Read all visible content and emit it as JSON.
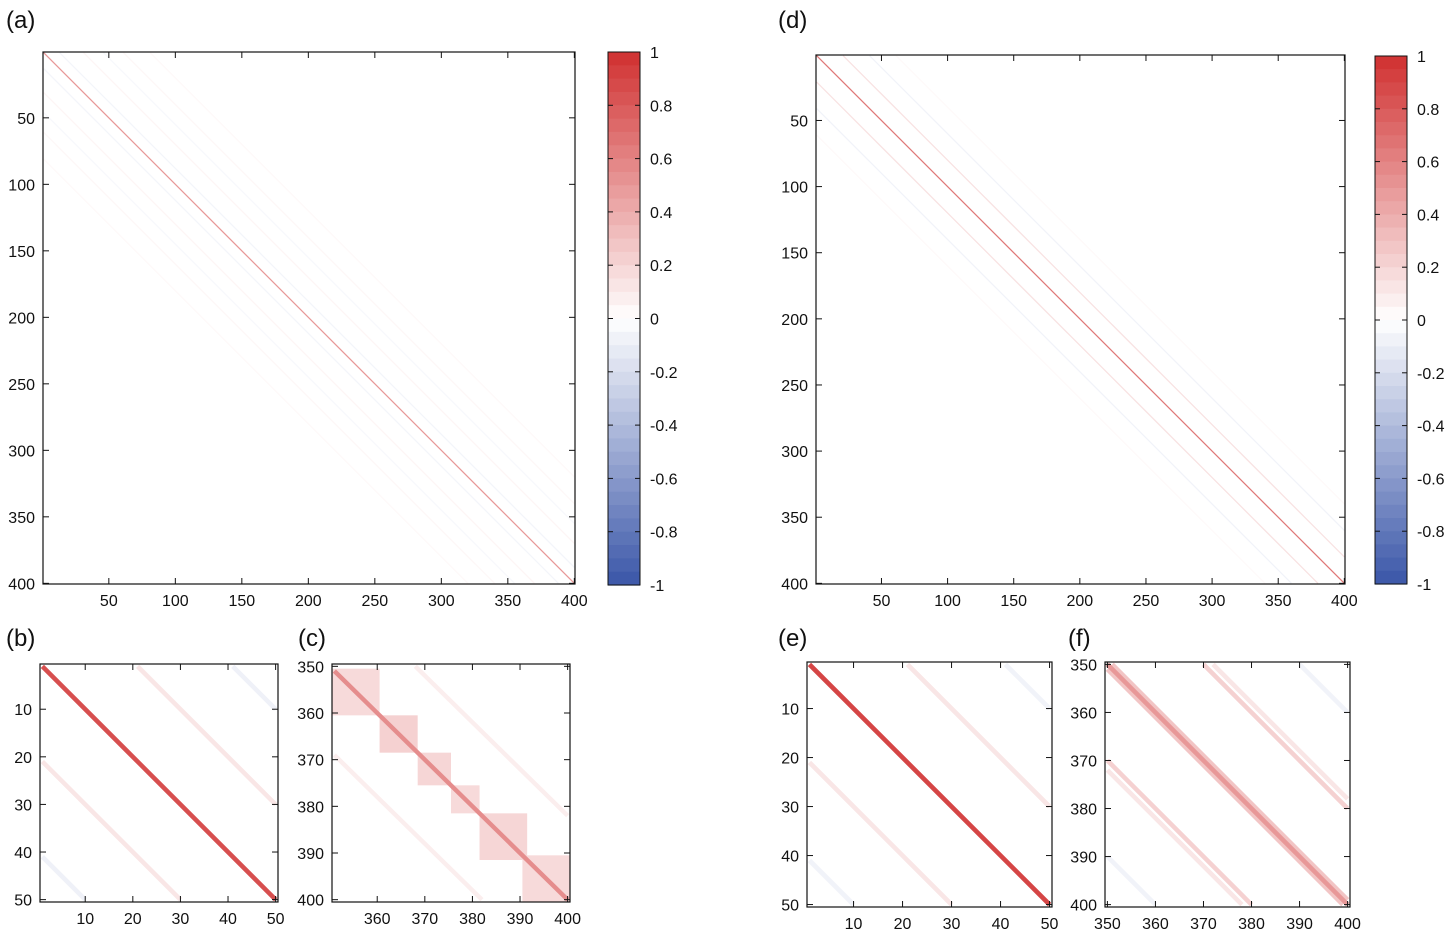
{
  "chart_data": [
    {
      "id": "a",
      "panel_label": "(a)",
      "type": "heatmap",
      "x_ticks": [
        50,
        100,
        150,
        200,
        250,
        300,
        350,
        400
      ],
      "y_ticks": [
        50,
        100,
        150,
        200,
        250,
        300,
        350,
        400
      ],
      "xlim": [
        1,
        400
      ],
      "ylim": [
        1,
        400
      ],
      "y_inverted": true,
      "diagonal_value": 0.5,
      "bands": [
        {
          "offset": 12,
          "value": -0.06
        },
        {
          "offset": -12,
          "value": -0.06
        },
        {
          "offset": 30,
          "value": 0.05
        },
        {
          "offset": -30,
          "value": 0.05
        },
        {
          "offset": 45,
          "value": -0.04
        },
        {
          "offset": -45,
          "value": -0.04
        },
        {
          "offset": 60,
          "value": 0.04
        },
        {
          "offset": -60,
          "value": 0.04
        },
        {
          "offset": 80,
          "value": 0.03
        },
        {
          "offset": -80,
          "value": 0.03
        }
      ]
    },
    {
      "id": "b",
      "panel_label": "(b)",
      "type": "heatmap",
      "x_ticks": [
        10,
        20,
        30,
        40,
        50
      ],
      "y_ticks": [
        10,
        20,
        30,
        40,
        50
      ],
      "xlim": [
        1,
        50
      ],
      "ylim": [
        1,
        50
      ],
      "y_inverted": true,
      "diagonal_value": 0.85,
      "bands": [
        {
          "offset": 20,
          "value": 0.12
        },
        {
          "offset": -20,
          "value": 0.12
        },
        {
          "offset": 40,
          "value": -0.08
        },
        {
          "offset": -40,
          "value": -0.08
        }
      ]
    },
    {
      "id": "c",
      "panel_label": "(c)",
      "type": "heatmap",
      "x_ticks": [
        360,
        370,
        380,
        390,
        400
      ],
      "y_ticks": [
        350,
        360,
        370,
        380,
        390,
        400
      ],
      "xlim": [
        351,
        400
      ],
      "ylim": [
        350,
        400
      ],
      "y_inverted": true,
      "diagonal_value": 0.55,
      "blocks": [
        {
          "from": 351,
          "to": 360,
          "value": 0.18
        },
        {
          "from": 361,
          "to": 368,
          "value": 0.22
        },
        {
          "from": 369,
          "to": 375,
          "value": 0.2
        },
        {
          "from": 376,
          "to": 381,
          "value": 0.18
        },
        {
          "from": 382,
          "to": 391,
          "value": 0.2
        },
        {
          "from": 391,
          "to": 400,
          "value": 0.18
        }
      ],
      "bands": [
        {
          "offset": 18,
          "value": 0.08
        },
        {
          "offset": -18,
          "value": 0.08
        }
      ]
    },
    {
      "id": "d",
      "panel_label": "(d)",
      "type": "heatmap",
      "x_ticks": [
        50,
        100,
        150,
        200,
        250,
        300,
        350,
        400
      ],
      "y_ticks": [
        50,
        100,
        150,
        200,
        250,
        300,
        350,
        400
      ],
      "xlim": [
        1,
        400
      ],
      "ylim": [
        1,
        400
      ],
      "y_inverted": true,
      "diagonal_value": 0.65,
      "bands": [
        {
          "offset": 20,
          "value": 0.14
        },
        {
          "offset": -20,
          "value": 0.14
        },
        {
          "offset": 40,
          "value": -0.07
        },
        {
          "offset": -40,
          "value": -0.07
        },
        {
          "offset": 60,
          "value": 0.03
        },
        {
          "offset": -60,
          "value": 0.03
        }
      ]
    },
    {
      "id": "e",
      "panel_label": "(e)",
      "type": "heatmap",
      "x_ticks": [
        10,
        20,
        30,
        40,
        50
      ],
      "y_ticks": [
        10,
        20,
        30,
        40,
        50
      ],
      "xlim": [
        1,
        50
      ],
      "ylim": [
        1,
        50
      ],
      "y_inverted": true,
      "diagonal_value": 0.9,
      "bands": [
        {
          "offset": 20,
          "value": 0.12
        },
        {
          "offset": -20,
          "value": 0.12
        },
        {
          "offset": 40,
          "value": -0.07
        },
        {
          "offset": -40,
          "value": -0.07
        }
      ]
    },
    {
      "id": "f",
      "panel_label": "(f)",
      "type": "heatmap",
      "x_ticks": [
        350,
        360,
        370,
        380,
        390,
        400
      ],
      "y_ticks": [
        350,
        360,
        370,
        380,
        390,
        400
      ],
      "xlim": [
        350,
        400
      ],
      "ylim": [
        350,
        400
      ],
      "y_inverted": true,
      "diagonal_value": 0.5,
      "bands": [
        {
          "offset": 1,
          "value": 0.28
        },
        {
          "offset": -1,
          "value": 0.28
        },
        {
          "offset": 20,
          "value": 0.22
        },
        {
          "offset": -20,
          "value": 0.22
        },
        {
          "offset": 22,
          "value": 0.12
        },
        {
          "offset": -22,
          "value": 0.12
        },
        {
          "offset": 40,
          "value": -0.07
        },
        {
          "offset": -40,
          "value": -0.07
        }
      ]
    }
  ],
  "colorbars": [
    {
      "for": "a",
      "range": [
        -1,
        1
      ],
      "tick_labels": [
        "1",
        "0.8",
        "0.6",
        "0.4",
        "0.2",
        "0",
        "-0.2",
        "-0.4",
        "-0.6",
        "-0.8",
        "-1"
      ]
    },
    {
      "for": "d",
      "range": [
        -1,
        1
      ],
      "tick_labels": [
        "1",
        "0.8",
        "0.6",
        "0.4",
        "0.2",
        "0",
        "-0.2",
        "-0.4",
        "-0.6",
        "-0.8",
        "-1"
      ]
    }
  ],
  "colors": {
    "positive": "#d03030",
    "neutral": "#ffffff",
    "negative": "#3a56a8",
    "axis": "#111111"
  }
}
